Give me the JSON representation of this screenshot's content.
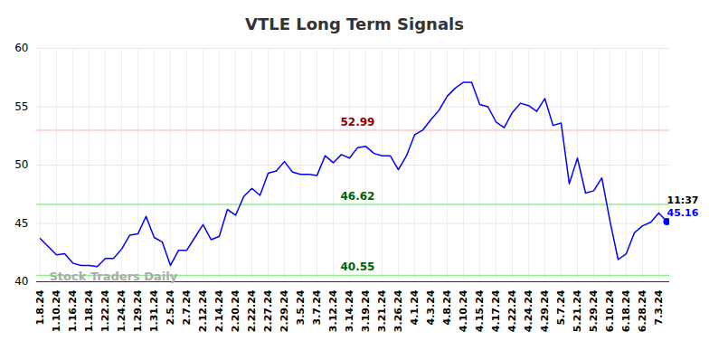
{
  "chart_data": {
    "type": "line",
    "title": "VTLE Long Term Signals",
    "categories": [
      "1.8.24",
      null,
      "1.10.24",
      null,
      "1.16.24",
      null,
      "1.18.24",
      null,
      "1.22.24",
      null,
      "1.24.24",
      null,
      "1.29.24",
      null,
      "1.31.24",
      null,
      "2.5.24",
      null,
      "2.7.24",
      null,
      "2.12.24",
      null,
      "2.14.24",
      null,
      "2.20.24",
      null,
      "2.22.24",
      null,
      "2.27.24",
      null,
      "2.29.24",
      null,
      "3.5.24",
      null,
      "3.7.24",
      null,
      "3.12.24",
      null,
      "3.14.24",
      null,
      "3.19.24",
      null,
      "3.21.24",
      null,
      "3.26.24",
      null,
      "4.1.24",
      null,
      "4.3.24",
      null,
      "4.8.24",
      null,
      "4.10.24",
      null,
      "4.15.24",
      null,
      "4.17.24",
      null,
      "4.22.24",
      null,
      "4.24.24",
      null,
      "4.29.24",
      null,
      "5.7.24",
      null,
      "5.21.24",
      null,
      "5.29.24",
      null,
      "6.10.24",
      null,
      "6.18.24",
      null,
      "6.28.24",
      null,
      "7.3.24",
      null
    ],
    "values": [
      43.7,
      43.0,
      42.3,
      42.4,
      41.6,
      41.4,
      41.4,
      41.3,
      42.0,
      42.0,
      42.8,
      44.0,
      44.1,
      45.6,
      43.8,
      43.4,
      41.4,
      42.7,
      42.7,
      43.8,
      44.9,
      43.6,
      43.9,
      46.2,
      45.7,
      47.3,
      48.0,
      47.4,
      49.3,
      49.5,
      50.3,
      49.4,
      49.2,
      49.2,
      49.1,
      50.8,
      50.2,
      50.9,
      50.6,
      51.5,
      51.6,
      51.0,
      50.8,
      50.8,
      49.6,
      50.8,
      52.6,
      53.0,
      53.9,
      54.7,
      55.9,
      56.6,
      57.1,
      57.1,
      55.2,
      55.0,
      53.7,
      53.2,
      54.5,
      55.3,
      55.1,
      54.6,
      55.7,
      53.4,
      53.6,
      48.4,
      50.6,
      47.6,
      47.8,
      48.9,
      45.2,
      41.9,
      42.4,
      44.2,
      44.8,
      45.1,
      45.9,
      45.16
    ],
    "color": "#0000ff",
    "ylim": [
      40,
      60
    ],
    "yticks": [
      40,
      45,
      50,
      55,
      60
    ],
    "grid": true,
    "levels": [
      {
        "value": 52.99,
        "color": "#ffc8c8",
        "text_color": "#8b0000"
      },
      {
        "value": 46.62,
        "color": "#90ee90",
        "text_color": "#006400"
      },
      {
        "value": 40.55,
        "color": "#90ee90",
        "text_color": "#006400"
      }
    ],
    "last_point_label": "11:37",
    "watermark": "Stock Traders Daily"
  }
}
